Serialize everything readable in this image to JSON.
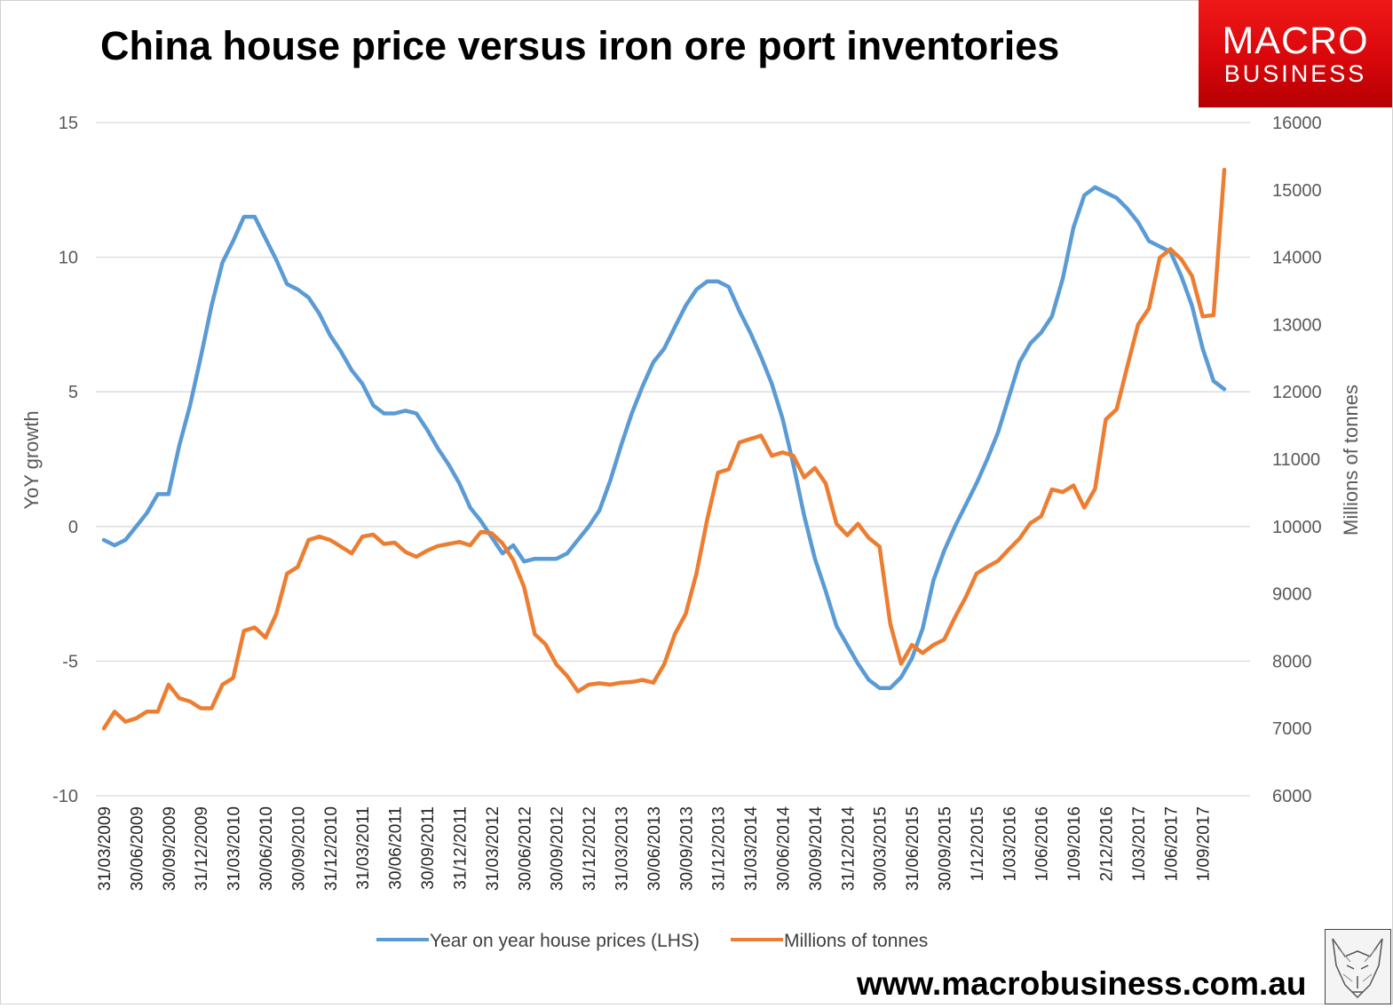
{
  "title": "China house price versus iron ore port inventories",
  "logo": {
    "line1": "MACRO",
    "line2": "BUSINESS"
  },
  "footer": {
    "url": "www.macrobusiness.com.au"
  },
  "colors": {
    "house": "#5B9BD5",
    "ore": "#ED7D31",
    "grid": "#d9d9d9"
  },
  "chart_data": {
    "type": "line",
    "title": "China house price versus iron ore port inventories",
    "y_left": {
      "label": "YoY growth",
      "lim": [
        -10,
        15
      ],
      "ticks": [
        -10,
        -5,
        0,
        5,
        10,
        15
      ]
    },
    "y_right": {
      "label": "Millions of tonnes",
      "lim": [
        6000,
        16000
      ],
      "ticks": [
        6000,
        7000,
        8000,
        9000,
        10000,
        11000,
        12000,
        13000,
        14000,
        15000,
        16000
      ]
    },
    "x_tick_labels": [
      "31/03/2009",
      "30/06/2009",
      "30/09/2009",
      "31/12/2009",
      "31/03/2010",
      "30/06/2010",
      "30/09/2010",
      "31/12/2010",
      "31/03/2011",
      "30/06/2011",
      "30/09/2011",
      "31/12/2011",
      "31/03/2012",
      "30/06/2012",
      "30/09/2012",
      "31/12/2012",
      "31/03/2013",
      "30/06/2013",
      "30/09/2013",
      "31/12/2013",
      "31/03/2014",
      "30/06/2014",
      "30/09/2014",
      "31/12/2014",
      "30/03/2015",
      "31/06/2015",
      "30/09/2015",
      "1/12/2015",
      "1/03/2016",
      "1/06/2016",
      "1/09/2016",
      "2/12/2016",
      "1/03/2017",
      "1/06/2017",
      "1/09/2017"
    ],
    "grid": "horizontal",
    "legend": "bottom",
    "series": [
      {
        "name": "Year on year house prices (LHS)",
        "axis": "left",
        "color": "#5B9BD5",
        "values": [
          -0.5,
          -0.7,
          -0.5,
          0.0,
          0.5,
          1.2,
          1.2,
          3.0,
          4.5,
          6.3,
          8.2,
          9.8,
          10.6,
          11.5,
          11.5,
          10.7,
          9.9,
          9.0,
          8.8,
          8.5,
          7.9,
          7.1,
          6.5,
          5.8,
          5.3,
          4.5,
          4.2,
          4.2,
          4.3,
          4.2,
          3.6,
          2.9,
          2.3,
          1.6,
          0.7,
          0.2,
          -0.4,
          -1.0,
          -0.7,
          -1.3,
          -1.2,
          -1.2,
          -1.2,
          -1.0,
          -0.5,
          0.0,
          0.6,
          1.7,
          3.0,
          4.2,
          5.2,
          6.1,
          6.6,
          7.4,
          8.2,
          8.8,
          9.1,
          9.1,
          8.9,
          8.0,
          7.2,
          6.3,
          5.3,
          4.0,
          2.3,
          0.4,
          -1.2,
          -2.4,
          -3.7,
          -4.4,
          -5.1,
          -5.7,
          -6.0,
          -6.0,
          -5.6,
          -4.9,
          -3.8,
          -2.0,
          -0.9,
          0.0,
          0.8,
          1.6,
          2.5,
          3.5,
          4.8,
          6.1,
          6.8,
          7.2,
          7.8,
          9.2,
          11.1,
          12.3,
          12.6,
          12.4,
          12.2,
          11.8,
          11.3,
          10.6,
          10.4,
          10.2,
          9.3,
          8.2,
          6.6,
          5.4,
          5.1
        ]
      },
      {
        "name": "Millions of tonnes",
        "axis": "right",
        "color": "#ED7D31",
        "values": [
          7000,
          7250,
          7100,
          7150,
          7250,
          7250,
          7650,
          7450,
          7400,
          7300,
          7300,
          7650,
          7750,
          8450,
          8500,
          8350,
          8700,
          9300,
          9400,
          9800,
          9850,
          9800,
          9700,
          9600,
          9850,
          9880,
          9740,
          9760,
          9620,
          9550,
          9640,
          9710,
          9740,
          9770,
          9720,
          9920,
          9900,
          9750,
          9500,
          9100,
          8400,
          8250,
          7950,
          7780,
          7550,
          7650,
          7670,
          7650,
          7680,
          7690,
          7720,
          7680,
          7950,
          8400,
          8700,
          9300,
          10100,
          10800,
          10850,
          11250,
          11300,
          11350,
          11050,
          11100,
          11050,
          10730,
          10870,
          10640,
          10040,
          9870,
          10040,
          9830,
          9700,
          8550,
          7960,
          8240,
          8120,
          8240,
          8320,
          8650,
          8950,
          9300,
          9400,
          9490,
          9660,
          9820,
          10050,
          10150,
          10550,
          10510,
          10610,
          10280,
          10560,
          11590,
          11740,
          12380,
          13000,
          13240,
          13990,
          14120,
          13970,
          13720,
          13120,
          13140,
          15300
        ]
      }
    ]
  }
}
